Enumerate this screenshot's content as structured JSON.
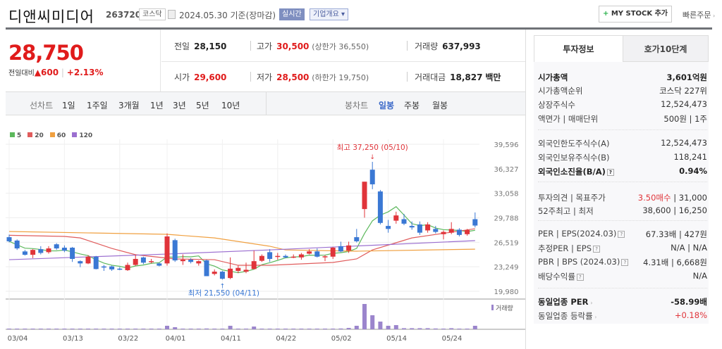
{
  "header": {
    "name": "디앤씨미디어",
    "code": "263720",
    "market": "코스닥",
    "date_text": "2024.05.30 기준(장마감)",
    "realtime": "실시간",
    "company_info": "기업개요",
    "mystock": "MY STOCK 추가",
    "quick_order": "빠른주문"
  },
  "price": {
    "current": "28,750",
    "change_label": "전일대비",
    "change": "▲600",
    "change_pct": "+2.13%"
  },
  "quote": {
    "prev_label": "전일",
    "prev": "28,150",
    "high_label": "고가",
    "high": "30,500",
    "upper_limit": "(상한가 36,550)",
    "volume_label": "거래량",
    "volume": "637,993",
    "open_label": "시가",
    "open": "29,600",
    "low_label": "저가",
    "low": "28,500",
    "lower_limit": "(하한가 19,750)",
    "amount_label": "거래대금",
    "amount": "18,827",
    "amount_unit": "백만"
  },
  "period": {
    "line_label": "선차트",
    "line_items": [
      "1일",
      "1주일",
      "3개월",
      "1년",
      "3년",
      "5년",
      "10년"
    ],
    "candle_label": "봉차트",
    "candle_items": [
      "일봉",
      "주봉",
      "월봉"
    ],
    "candle_selected": "일봉"
  },
  "tabs": [
    "투자정보",
    "호가10단계"
  ],
  "info": [
    {
      "label": "시가총액",
      "value": "3,601억원",
      "bold": true
    },
    {
      "label": "시가총액순위",
      "value": "코스닥 227위"
    },
    {
      "label": "상장주식수",
      "value": "12,524,473"
    },
    {
      "label": "액면가 | 매매단위",
      "value": "500원 | 1주"
    },
    {
      "label": "외국인한도주식수(A)",
      "value": "12,524,473"
    },
    {
      "label": "외국인보유주식수(B)",
      "value": "118,241"
    },
    {
      "label": "외국인소진율(B/A)",
      "value": "0.94%",
      "bold": true,
      "help": true
    },
    {
      "label": "투자의견 | 목표주가",
      "value_red": "3.50매수",
      "value": " | 31,000"
    },
    {
      "label": "52주최고 | 최저",
      "value": "38,600 | 16,250"
    },
    {
      "label": "PER | EPS(2024.03)",
      "value": "67.33배 | 427원",
      "help": true
    },
    {
      "label": "추정PER | EPS",
      "value": "N/A | N/A",
      "help": true
    },
    {
      "label": "PBR | BPS (2024.03)",
      "value": "4.31배 | 6,668원",
      "help": true
    },
    {
      "label": "배당수익률",
      "value": "N/A",
      "help": true
    },
    {
      "label": "동일업종 PER",
      "value": "-58.99배",
      "bold": true
    },
    {
      "label": "동일업종 등락률",
      "value_red": "+0.18%",
      "value": ""
    }
  ],
  "colors": {
    "up": "#e0343a",
    "down": "#3a78d4",
    "ma5": "#5cb85c",
    "ma20": "#e05c5c",
    "ma60": "#f0a040",
    "ma120": "#9b6fd0",
    "volume": "#9b85cc"
  },
  "chart_data": {
    "type": "candlestick",
    "legend": [
      "5",
      "20",
      "60",
      "120"
    ],
    "yticks": [
      "39,596",
      "36,327",
      "33,058",
      "29,788",
      "26,519",
      "23,249",
      "19,980"
    ],
    "ylim": [
      19980,
      39596
    ],
    "xticks": [
      "03/04",
      "03/13",
      "03/22",
      "04/01",
      "04/11",
      "04/22",
      "05/02",
      "05/14",
      "05/24"
    ],
    "max_annotation": "최고 37,250 (05/10)",
    "min_annotation": "최저 21,550 (04/11)",
    "volume_label": "거래량",
    "dates": [
      "03/04",
      "03/05",
      "03/06",
      "03/07",
      "03/08",
      "03/11",
      "03/12",
      "03/13",
      "03/14",
      "03/15",
      "03/18",
      "03/19",
      "03/20",
      "03/21",
      "03/22",
      "03/25",
      "03/26",
      "03/27",
      "03/28",
      "03/29",
      "04/01",
      "04/02",
      "04/03",
      "04/04",
      "04/05",
      "04/08",
      "04/09",
      "04/11",
      "04/12",
      "04/15",
      "04/16",
      "04/17",
      "04/18",
      "04/19",
      "04/22",
      "04/23",
      "04/24",
      "04/25",
      "04/26",
      "04/29",
      "04/30",
      "05/02",
      "05/03",
      "05/07",
      "05/08",
      "05/09",
      "05/10",
      "05/13",
      "05/14",
      "05/16",
      "05/17",
      "05/20",
      "05/21",
      "05/22",
      "05/23",
      "05/24",
      "05/27",
      "05/28",
      "05/29",
      "05/30"
    ],
    "ohlc": [
      [
        27200,
        27550,
        26500,
        26650
      ],
      [
        26750,
        26900,
        25500,
        25700
      ],
      [
        25300,
        25500,
        24750,
        24850
      ],
      [
        24850,
        25600,
        24400,
        25500
      ],
      [
        25600,
        26000,
        24900,
        25100
      ],
      [
        25200,
        26000,
        25000,
        25700
      ],
      [
        26250,
        26400,
        25500,
        25700
      ],
      [
        25800,
        26100,
        25200,
        25400
      ],
      [
        25800,
        25900,
        23900,
        24300
      ],
      [
        24000,
        24100,
        23200,
        23700
      ],
      [
        23700,
        24800,
        23600,
        24600
      ],
      [
        24600,
        24700,
        22900,
        22950
      ],
      [
        23300,
        23500,
        22700,
        23150
      ],
      [
        23300,
        23400,
        22700,
        22900
      ],
      [
        23000,
        23200,
        22800,
        22950
      ],
      [
        22800,
        23800,
        22700,
        23500
      ],
      [
        23500,
        24900,
        23400,
        24300
      ],
      [
        24500,
        24600,
        23600,
        23800
      ],
      [
        23900,
        24300,
        23700,
        24000
      ],
      [
        23700,
        23800,
        23300,
        23400
      ],
      [
        23700,
        27700,
        23400,
        27300
      ],
      [
        26800,
        27000,
        23900,
        24100
      ],
      [
        24000,
        24900,
        23500,
        24200
      ],
      [
        24200,
        24400,
        23700,
        23900
      ],
      [
        23700,
        24100,
        23400,
        24000
      ],
      [
        24100,
        24200,
        22000,
        22000
      ],
      [
        22300,
        22900,
        22100,
        22600
      ],
      [
        22600,
        22700,
        21550,
        21650
      ],
      [
        21750,
        24500,
        21600,
        23000
      ],
      [
        22700,
        23400,
        22400,
        23100
      ],
      [
        22600,
        23800,
        22400,
        22850
      ],
      [
        22950,
        25400,
        22900,
        24000
      ],
      [
        24050,
        24900,
        23900,
        24700
      ],
      [
        25200,
        25600,
        23900,
        24300
      ],
      [
        24600,
        25100,
        24200,
        24700
      ],
      [
        24700,
        24900,
        24400,
        24500
      ],
      [
        24500,
        24900,
        24400,
        24600
      ],
      [
        24500,
        25100,
        24200,
        24900
      ],
      [
        25000,
        25600,
        24900,
        25300
      ],
      [
        25300,
        25700,
        24500,
        24600
      ],
      [
        24600,
        24800,
        24000,
        24650
      ],
      [
        24600,
        25900,
        24300,
        25800
      ],
      [
        26000,
        26600,
        25200,
        25300
      ],
      [
        25400,
        26600,
        25100,
        26100
      ],
      [
        27200,
        28300,
        26500,
        26650
      ],
      [
        30950,
        34600,
        29800,
        34600
      ],
      [
        36200,
        37250,
        33600,
        34250
      ],
      [
        33300,
        33500,
        28900,
        29100
      ],
      [
        28700,
        29500,
        27800,
        28300
      ],
      [
        29400,
        30600,
        29000,
        30100
      ],
      [
        29600,
        30300,
        28800,
        29000
      ],
      [
        28700,
        29300,
        28200,
        28500
      ],
      [
        28900,
        29300,
        27500,
        27800
      ],
      [
        28100,
        29200,
        27800,
        28900
      ],
      [
        28300,
        28700,
        27700,
        27900
      ],
      [
        27600,
        28100,
        26900,
        27900
      ],
      [
        27800,
        29200,
        27600,
        28300
      ],
      [
        28200,
        28400,
        27300,
        27500
      ],
      [
        27600,
        28300,
        27400,
        28150
      ],
      [
        29600,
        30500,
        28500,
        28750
      ]
    ],
    "volume": [
      100000,
      100000,
      100000,
      100000,
      100000,
      100000,
      100000,
      100000,
      100000,
      100000,
      100000,
      100000,
      100000,
      100000,
      100000,
      100000,
      100000,
      100000,
      100000,
      100000,
      640000,
      380000,
      100000,
      100000,
      100000,
      150000,
      100000,
      120000,
      640000,
      100000,
      100000,
      500000,
      100000,
      100000,
      100000,
      100000,
      100000,
      100000,
      100000,
      100000,
      100000,
      130000,
      150000,
      250000,
      640000,
      4600000,
      2550000,
      1400000,
      640000,
      760000,
      200000,
      200000,
      200000,
      200000,
      150000,
      100000,
      200000,
      100000,
      100000,
      637993
    ],
    "ma": [
      {
        "period": 20,
        "points": [
          [
            0,
            27450
          ],
          [
            7,
            27300
          ],
          [
            9,
            27100
          ],
          [
            13,
            25700
          ],
          [
            16,
            24860
          ],
          [
            21,
            24300
          ],
          [
            26,
            24200
          ],
          [
            29,
            23450
          ],
          [
            33,
            23450
          ],
          [
            41,
            23830
          ],
          [
            44,
            24300
          ],
          [
            46,
            25500
          ],
          [
            51,
            27100
          ],
          [
            59,
            28330
          ]
        ]
      },
      {
        "period": 60,
        "points": [
          [
            0,
            27960
          ],
          [
            20,
            27580
          ],
          [
            26,
            27100
          ],
          [
            33,
            25990
          ],
          [
            35,
            25500
          ],
          [
            44,
            25330
          ],
          [
            59,
            25600
          ]
        ]
      },
      {
        "period": 120,
        "points": [
          [
            0,
            24200
          ],
          [
            20,
            24950
          ],
          [
            33,
            25500
          ],
          [
            59,
            26740
          ]
        ]
      }
    ]
  }
}
